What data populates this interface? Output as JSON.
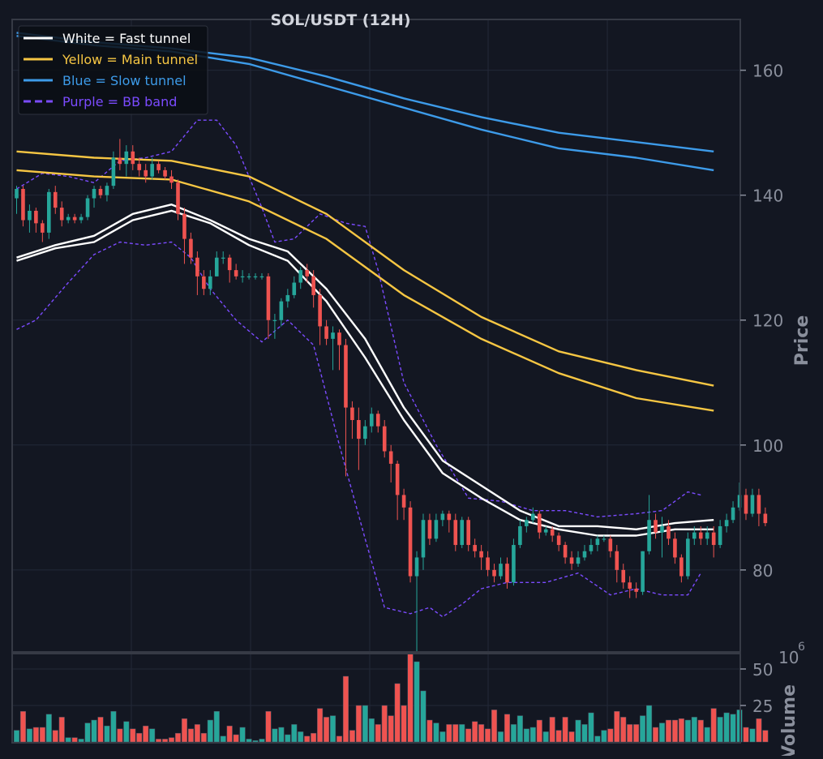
{
  "chart_data": {
    "type": "candlestick",
    "title": "SOL/USDT (12H)",
    "ylabel": "Price",
    "volume_label": "Volume",
    "volume_multiplier": "10",
    "volume_multiplier_exp": "6",
    "price_range": [
      67,
      168
    ],
    "price_ticks": [
      80,
      100,
      120,
      140,
      160
    ],
    "volume_range": [
      0,
      60
    ],
    "volume_ticks": [
      25,
      50
    ],
    "legend": [
      {
        "label": "White = Fast tunnel",
        "color": "#ffffff",
        "dash": false
      },
      {
        "label": "Yellow = Main tunnel",
        "color": "#f6c643",
        "dash": false
      },
      {
        "label": "Blue = Slow tunnel",
        "color": "#3d9be9",
        "dash": false
      },
      {
        "label": "Purple = BB band",
        "color": "#7b4bff",
        "dash": true
      }
    ],
    "colors": {
      "up": "#26a69a",
      "down": "#ef5350",
      "bg": "#131722",
      "grid": "#232838",
      "axis": "#8a8f9c",
      "title": "#d1d4dc"
    },
    "candles": [
      {
        "o": 139.5,
        "h": 141.5,
        "l": 137,
        "c": 141,
        "v": 8
      },
      {
        "o": 141,
        "h": 141.5,
        "l": 135,
        "c": 136,
        "v": 21
      },
      {
        "o": 136,
        "h": 138.5,
        "l": 134,
        "c": 137.5,
        "v": 9
      },
      {
        "o": 137.5,
        "h": 138,
        "l": 134,
        "c": 135.5,
        "v": 10
      },
      {
        "o": 135.5,
        "h": 136,
        "l": 132.5,
        "c": 134,
        "v": 10
      },
      {
        "o": 134,
        "h": 141,
        "l": 133,
        "c": 140.5,
        "v": 19
      },
      {
        "o": 140.5,
        "h": 141.5,
        "l": 137,
        "c": 138,
        "v": 8
      },
      {
        "o": 138,
        "h": 139,
        "l": 135,
        "c": 136,
        "v": 17
      },
      {
        "o": 136,
        "h": 137,
        "l": 135.5,
        "c": 136.5,
        "v": 3
      },
      {
        "o": 136.5,
        "h": 137,
        "l": 135.5,
        "c": 136,
        "v": 3
      },
      {
        "o": 136,
        "h": 137,
        "l": 135.5,
        "c": 136.5,
        "v": 2
      },
      {
        "o": 136.5,
        "h": 140,
        "l": 136,
        "c": 139.5,
        "v": 13
      },
      {
        "o": 139.5,
        "h": 141.5,
        "l": 138,
        "c": 141,
        "v": 15
      },
      {
        "o": 141,
        "h": 141.5,
        "l": 139.5,
        "c": 140,
        "v": 17
      },
      {
        "o": 140,
        "h": 142,
        "l": 139,
        "c": 141.5,
        "v": 11
      },
      {
        "o": 141.5,
        "h": 147,
        "l": 141,
        "c": 146,
        "v": 21
      },
      {
        "o": 146,
        "h": 149,
        "l": 144,
        "c": 145,
        "v": 9
      },
      {
        "o": 145,
        "h": 148,
        "l": 143,
        "c": 147,
        "v": 14
      },
      {
        "o": 147,
        "h": 148,
        "l": 144,
        "c": 145,
        "v": 9
      },
      {
        "o": 145,
        "h": 146,
        "l": 143,
        "c": 144,
        "v": 6
      },
      {
        "o": 144,
        "h": 145,
        "l": 142,
        "c": 143,
        "v": 11
      },
      {
        "o": 143,
        "h": 146,
        "l": 142.5,
        "c": 145,
        "v": 9
      },
      {
        "o": 145,
        "h": 145.5,
        "l": 143.5,
        "c": 144,
        "v": 2
      },
      {
        "o": 144,
        "h": 144.5,
        "l": 142.5,
        "c": 143,
        "v": 2
      },
      {
        "o": 143,
        "h": 144,
        "l": 141,
        "c": 142,
        "v": 3
      },
      {
        "o": 142,
        "h": 142.5,
        "l": 136,
        "c": 137,
        "v": 6
      },
      {
        "o": 137,
        "h": 138,
        "l": 129,
        "c": 133,
        "v": 16
      },
      {
        "o": 133,
        "h": 134,
        "l": 129,
        "c": 130,
        "v": 9
      },
      {
        "o": 130,
        "h": 131,
        "l": 124,
        "c": 127,
        "v": 12
      },
      {
        "o": 127,
        "h": 128,
        "l": 124,
        "c": 125,
        "v": 6
      },
      {
        "o": 125,
        "h": 128,
        "l": 124,
        "c": 127,
        "v": 15
      },
      {
        "o": 127,
        "h": 131,
        "l": 127,
        "c": 130,
        "v": 21
      },
      {
        "o": 130,
        "h": 131,
        "l": 129,
        "c": 130,
        "v": 4
      },
      {
        "o": 130,
        "h": 130.5,
        "l": 126,
        "c": 128,
        "v": 11
      },
      {
        "o": 128,
        "h": 129,
        "l": 126.5,
        "c": 127,
        "v": 5
      },
      {
        "o": 127,
        "h": 128,
        "l": 126,
        "c": 127,
        "v": 10
      },
      {
        "o": 127,
        "h": 127.5,
        "l": 126.5,
        "c": 127,
        "v": 2
      },
      {
        "o": 127,
        "h": 127.5,
        "l": 126.5,
        "c": 127,
        "v": 1
      },
      {
        "o": 127,
        "h": 127.5,
        "l": 126.5,
        "c": 127,
        "v": 2
      },
      {
        "o": 127,
        "h": 127.5,
        "l": 117,
        "c": 120,
        "v": 21
      },
      {
        "o": 120,
        "h": 121,
        "l": 117,
        "c": 120,
        "v": 9
      },
      {
        "o": 120,
        "h": 123.5,
        "l": 119,
        "c": 123,
        "v": 10
      },
      {
        "o": 123,
        "h": 125,
        "l": 122,
        "c": 124,
        "v": 5
      },
      {
        "o": 124,
        "h": 127,
        "l": 123.5,
        "c": 126,
        "v": 12
      },
      {
        "o": 126,
        "h": 128.5,
        "l": 125,
        "c": 128,
        "v": 7
      },
      {
        "o": 128,
        "h": 129,
        "l": 126,
        "c": 127,
        "v": 4
      },
      {
        "o": 127,
        "h": 128,
        "l": 122,
        "c": 124,
        "v": 6
      },
      {
        "o": 124,
        "h": 125,
        "l": 116,
        "c": 119,
        "v": 23
      },
      {
        "o": 119,
        "h": 120,
        "l": 116,
        "c": 117,
        "v": 17
      },
      {
        "o": 117,
        "h": 119,
        "l": 112,
        "c": 118,
        "v": 18
      },
      {
        "o": 118,
        "h": 118.5,
        "l": 112,
        "c": 116,
        "v": 4
      },
      {
        "o": 116,
        "h": 117,
        "l": 95,
        "c": 106,
        "v": 45
      },
      {
        "o": 106,
        "h": 107,
        "l": 101,
        "c": 104,
        "v": 8
      },
      {
        "o": 104,
        "h": 106,
        "l": 96,
        "c": 101,
        "v": 25
      },
      {
        "o": 101,
        "h": 104,
        "l": 100,
        "c": 103,
        "v": 25
      },
      {
        "o": 103,
        "h": 106,
        "l": 102,
        "c": 105,
        "v": 16
      },
      {
        "o": 105,
        "h": 105.5,
        "l": 102,
        "c": 103,
        "v": 12
      },
      {
        "o": 103,
        "h": 104,
        "l": 98,
        "c": 99,
        "v": 25
      },
      {
        "o": 99,
        "h": 100,
        "l": 94,
        "c": 97,
        "v": 18
      },
      {
        "o": 97,
        "h": 97.5,
        "l": 88,
        "c": 92,
        "v": 40
      },
      {
        "o": 92,
        "h": 93,
        "l": 88,
        "c": 90,
        "v": 25
      },
      {
        "o": 90,
        "h": 91,
        "l": 78,
        "c": 79,
        "v": 62
      },
      {
        "o": 79,
        "h": 83,
        "l": 67,
        "c": 82,
        "v": 55
      },
      {
        "o": 82,
        "h": 89,
        "l": 80,
        "c": 88,
        "v": 35
      },
      {
        "o": 88,
        "h": 89,
        "l": 84,
        "c": 85,
        "v": 15
      },
      {
        "o": 85,
        "h": 89,
        "l": 84.5,
        "c": 88,
        "v": 13
      },
      {
        "o": 88,
        "h": 89.5,
        "l": 87,
        "c": 89,
        "v": 7
      },
      {
        "o": 89,
        "h": 89.5,
        "l": 86,
        "c": 88,
        "v": 12
      },
      {
        "o": 88,
        "h": 89,
        "l": 83,
        "c": 84,
        "v": 12
      },
      {
        "o": 84,
        "h": 88.5,
        "l": 83.5,
        "c": 88,
        "v": 12
      },
      {
        "o": 88,
        "h": 88.5,
        "l": 83,
        "c": 84,
        "v": 9
      },
      {
        "o": 84,
        "h": 85,
        "l": 82,
        "c": 83,
        "v": 14
      },
      {
        "o": 83,
        "h": 84,
        "l": 80,
        "c": 82,
        "v": 12
      },
      {
        "o": 82,
        "h": 83,
        "l": 79,
        "c": 80,
        "v": 9
      },
      {
        "o": 80,
        "h": 81,
        "l": 78,
        "c": 79,
        "v": 22
      },
      {
        "o": 79,
        "h": 82,
        "l": 78.5,
        "c": 81,
        "v": 7
      },
      {
        "o": 81,
        "h": 82,
        "l": 77,
        "c": 78,
        "v": 19
      },
      {
        "o": 78,
        "h": 85,
        "l": 77.5,
        "c": 84,
        "v": 12
      },
      {
        "o": 84,
        "h": 88,
        "l": 83.5,
        "c": 87,
        "v": 18
      },
      {
        "o": 87,
        "h": 88.5,
        "l": 86,
        "c": 88,
        "v": 9
      },
      {
        "o": 88,
        "h": 90,
        "l": 87.5,
        "c": 89,
        "v": 10
      },
      {
        "o": 89,
        "h": 89.5,
        "l": 85,
        "c": 86,
        "v": 15
      },
      {
        "o": 86,
        "h": 87,
        "l": 85.5,
        "c": 86.5,
        "v": 7
      },
      {
        "o": 86.5,
        "h": 87,
        "l": 84.5,
        "c": 85.5,
        "v": 17
      },
      {
        "o": 85.5,
        "h": 86,
        "l": 83,
        "c": 84,
        "v": 8
      },
      {
        "o": 84,
        "h": 84.5,
        "l": 81,
        "c": 82,
        "v": 17
      },
      {
        "o": 82,
        "h": 83,
        "l": 80,
        "c": 81,
        "v": 7
      },
      {
        "o": 81,
        "h": 83,
        "l": 80.5,
        "c": 82,
        "v": 15
      },
      {
        "o": 82,
        "h": 84,
        "l": 81.5,
        "c": 83,
        "v": 12
      },
      {
        "o": 83,
        "h": 85,
        "l": 82.5,
        "c": 84,
        "v": 20
      },
      {
        "o": 84,
        "h": 85.5,
        "l": 83,
        "c": 85,
        "v": 4
      },
      {
        "o": 85,
        "h": 85.5,
        "l": 84.5,
        "c": 85,
        "v": 8
      },
      {
        "o": 85,
        "h": 85.5,
        "l": 82,
        "c": 83,
        "v": 9
      },
      {
        "o": 83,
        "h": 84,
        "l": 78,
        "c": 80,
        "v": 21
      },
      {
        "o": 80,
        "h": 81,
        "l": 77,
        "c": 78,
        "v": 17
      },
      {
        "o": 78,
        "h": 79,
        "l": 75.5,
        "c": 77,
        "v": 12
      },
      {
        "o": 77,
        "h": 78,
        "l": 75.5,
        "c": 76.5,
        "v": 12
      },
      {
        "o": 76.5,
        "h": 83,
        "l": 76,
        "c": 83,
        "v": 18
      },
      {
        "o": 83,
        "h": 92,
        "l": 82.5,
        "c": 88,
        "v": 25
      },
      {
        "o": 88,
        "h": 89,
        "l": 85,
        "c": 86,
        "v": 10
      },
      {
        "o": 86,
        "h": 88.5,
        "l": 82,
        "c": 87,
        "v": 13
      },
      {
        "o": 87,
        "h": 88,
        "l": 84,
        "c": 85,
        "v": 15
      },
      {
        "o": 85,
        "h": 86,
        "l": 81,
        "c": 82,
        "v": 15
      },
      {
        "o": 82,
        "h": 82.5,
        "l": 78,
        "c": 79,
        "v": 16
      },
      {
        "o": 79,
        "h": 86,
        "l": 78.5,
        "c": 85,
        "v": 15
      },
      {
        "o": 85,
        "h": 87,
        "l": 84,
        "c": 86,
        "v": 17
      },
      {
        "o": 86,
        "h": 87,
        "l": 84,
        "c": 85,
        "v": 15
      },
      {
        "o": 85,
        "h": 87,
        "l": 84,
        "c": 86,
        "v": 10
      },
      {
        "o": 86,
        "h": 87,
        "l": 82,
        "c": 84,
        "v": 23
      },
      {
        "o": 84,
        "h": 88,
        "l": 83.5,
        "c": 87,
        "v": 17
      },
      {
        "o": 87,
        "h": 89,
        "l": 86,
        "c": 88,
        "v": 20
      },
      {
        "o": 88,
        "h": 91,
        "l": 87.5,
        "c": 90,
        "v": 19
      },
      {
        "o": 90,
        "h": 94,
        "l": 89.5,
        "c": 92,
        "v": 22
      },
      {
        "o": 92,
        "h": 93,
        "l": 88,
        "c": 89,
        "v": 10
      },
      {
        "o": 89,
        "h": 93,
        "l": 88.5,
        "c": 92,
        "v": 9
      },
      {
        "o": 92,
        "h": 93,
        "l": 87,
        "c": 89,
        "v": 16
      },
      {
        "o": 89,
        "h": 90,
        "l": 87,
        "c": 87.5,
        "v": 8
      }
    ],
    "fast_upper": [
      [
        0,
        130
      ],
      [
        6,
        132
      ],
      [
        12,
        133.5
      ],
      [
        18,
        137
      ],
      [
        24,
        138.5
      ],
      [
        30,
        136
      ],
      [
        36,
        133
      ],
      [
        42,
        131
      ],
      [
        48,
        125
      ],
      [
        54,
        117
      ],
      [
        60,
        106
      ],
      [
        66,
        97.5
      ],
      [
        72,
        93.5
      ],
      [
        78,
        89.5
      ],
      [
        84,
        87
      ],
      [
        90,
        87
      ],
      [
        96,
        86.5
      ],
      [
        102,
        87.5
      ],
      [
        108,
        88
      ]
    ],
    "fast_lower": [
      [
        0,
        129.5
      ],
      [
        6,
        131.5
      ],
      [
        12,
        132.5
      ],
      [
        18,
        136
      ],
      [
        24,
        137.5
      ],
      [
        30,
        135.5
      ],
      [
        36,
        132
      ],
      [
        42,
        129.5
      ],
      [
        48,
        123
      ],
      [
        54,
        114
      ],
      [
        60,
        104
      ],
      [
        66,
        95.5
      ],
      [
        72,
        91.5
      ],
      [
        78,
        88
      ],
      [
        84,
        86.5
      ],
      [
        90,
        85.5
      ],
      [
        96,
        85.5
      ],
      [
        102,
        86.5
      ],
      [
        108,
        86.5
      ]
    ],
    "main_upper": [
      [
        0,
        147
      ],
      [
        12,
        146
      ],
      [
        24,
        145.5
      ],
      [
        36,
        143
      ],
      [
        48,
        137
      ],
      [
        60,
        128
      ],
      [
        72,
        120.5
      ],
      [
        84,
        115
      ],
      [
        96,
        112
      ],
      [
        108,
        109.5
      ]
    ],
    "main_lower": [
      [
        0,
        144
      ],
      [
        12,
        143
      ],
      [
        24,
        142.5
      ],
      [
        36,
        139
      ],
      [
        48,
        133
      ],
      [
        60,
        124
      ],
      [
        72,
        117
      ],
      [
        84,
        111.5
      ],
      [
        96,
        107.5
      ],
      [
        108,
        105.5
      ]
    ],
    "slow_upper": [
      [
        0,
        166
      ],
      [
        12,
        164.5
      ],
      [
        24,
        163.5
      ],
      [
        36,
        162
      ],
      [
        48,
        159
      ],
      [
        60,
        155.5
      ],
      [
        72,
        152.5
      ],
      [
        84,
        150
      ],
      [
        96,
        148.5
      ],
      [
        108,
        147
      ]
    ],
    "slow_lower": [
      [
        0,
        165.5
      ],
      [
        12,
        164
      ],
      [
        24,
        163
      ],
      [
        36,
        161
      ],
      [
        48,
        157.5
      ],
      [
        60,
        154
      ],
      [
        72,
        150.5
      ],
      [
        84,
        147.5
      ],
      [
        96,
        146
      ],
      [
        108,
        144
      ]
    ],
    "bb_upper": [
      [
        0,
        141
      ],
      [
        4,
        143.5
      ],
      [
        8,
        143
      ],
      [
        12,
        142
      ],
      [
        16,
        145.5
      ],
      [
        20,
        146
      ],
      [
        24,
        147
      ],
      [
        28,
        152
      ],
      [
        31,
        152
      ],
      [
        34,
        148
      ],
      [
        38,
        138
      ],
      [
        40,
        132.5
      ],
      [
        43,
        133
      ],
      [
        47,
        137
      ],
      [
        51,
        135.5
      ],
      [
        54,
        135
      ],
      [
        56,
        128
      ],
      [
        60,
        110
      ],
      [
        65,
        100
      ],
      [
        70,
        91.5
      ],
      [
        75,
        91
      ],
      [
        80,
        89.5
      ],
      [
        85,
        89.5
      ],
      [
        90,
        88.5
      ],
      [
        96,
        89
      ],
      [
        100,
        89.5
      ],
      [
        104,
        92.5
      ],
      [
        106,
        92
      ]
    ],
    "bb_lower": [
      [
        0,
        118.5
      ],
      [
        3,
        120
      ],
      [
        8,
        126
      ],
      [
        12,
        130.5
      ],
      [
        16,
        132.5
      ],
      [
        20,
        132
      ],
      [
        24,
        132.5
      ],
      [
        27,
        130
      ],
      [
        30,
        125
      ],
      [
        34,
        120
      ],
      [
        38,
        116.5
      ],
      [
        42,
        120
      ],
      [
        46,
        116
      ],
      [
        50,
        100
      ],
      [
        54,
        85
      ],
      [
        57,
        74
      ],
      [
        61,
        73
      ],
      [
        64,
        74
      ],
      [
        66,
        72.5
      ],
      [
        69,
        74.5
      ],
      [
        72,
        77
      ],
      [
        76,
        78
      ],
      [
        82,
        78
      ],
      [
        87,
        79.5
      ],
      [
        92,
        76
      ],
      [
        96,
        77
      ],
      [
        100,
        76
      ],
      [
        104,
        76
      ],
      [
        106,
        79.5
      ]
    ]
  }
}
